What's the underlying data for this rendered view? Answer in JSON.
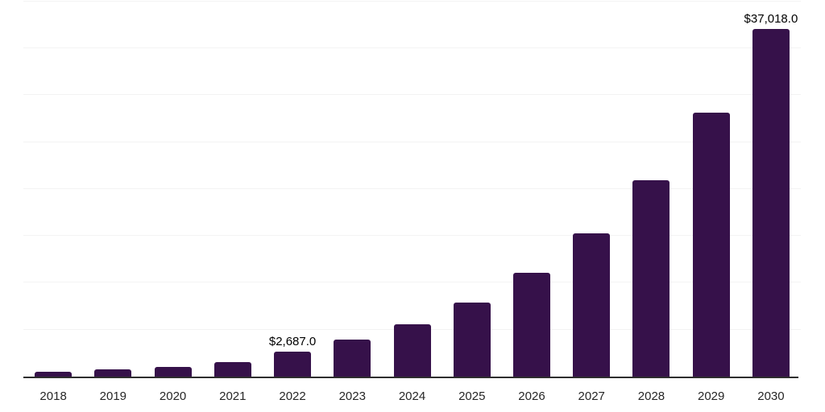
{
  "chart_data": {
    "type": "bar",
    "title": "",
    "xlabel": "",
    "ylabel": "",
    "categories": [
      "2018",
      "2019",
      "2020",
      "2021",
      "2022",
      "2023",
      "2024",
      "2025",
      "2026",
      "2027",
      "2028",
      "2029",
      "2030"
    ],
    "values": [
      520,
      740,
      1060,
      1560,
      2687,
      3920,
      5600,
      7910,
      11090,
      15290,
      20890,
      28160,
      37018
    ],
    "value_labels": {
      "2022": "$2,687.0",
      "2030": "$37,018.0"
    },
    "ylim": [
      0,
      40000
    ],
    "gridline_step": 5000,
    "grid": "horizontal",
    "legend": "none",
    "colors": {
      "bar": "#36114A",
      "axis_line": "#2e2e2e",
      "gridline": "#f3f3f3",
      "tick_label": "#262626",
      "data_label": "#000000",
      "background": "#ffffff"
    }
  }
}
